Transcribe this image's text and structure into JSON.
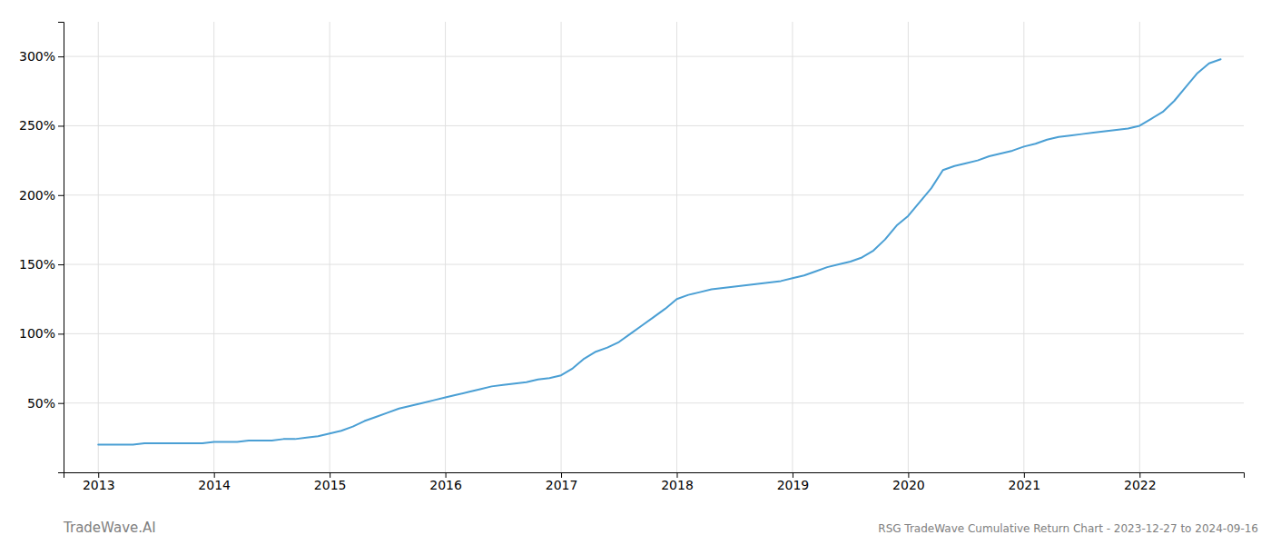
{
  "chart_data": {
    "type": "line",
    "title": "RSG TradeWave Cumulative Return Chart - 2023-12-27 to 2024-09-16",
    "annotations": [
      "TradeWave.AI"
    ],
    "x": [
      2013.0,
      2013.1,
      2013.2,
      2013.3,
      2013.4,
      2013.5,
      2013.6,
      2013.7,
      2013.8,
      2013.9,
      2014.0,
      2014.1,
      2014.2,
      2014.3,
      2014.4,
      2014.5,
      2014.6,
      2014.7,
      2014.8,
      2014.9,
      2015.0,
      2015.1,
      2015.2,
      2015.3,
      2015.4,
      2015.5,
      2015.6,
      2015.7,
      2015.8,
      2015.9,
      2016.0,
      2016.1,
      2016.2,
      2016.3,
      2016.4,
      2016.5,
      2016.6,
      2016.7,
      2016.8,
      2016.9,
      2017.0,
      2017.1,
      2017.2,
      2017.3,
      2017.4,
      2017.5,
      2017.6,
      2017.7,
      2017.8,
      2017.9,
      2018.0,
      2018.1,
      2018.2,
      2018.3,
      2018.4,
      2018.5,
      2018.6,
      2018.7,
      2018.8,
      2018.9,
      2019.0,
      2019.1,
      2019.2,
      2019.3,
      2019.4,
      2019.5,
      2019.6,
      2019.7,
      2019.8,
      2019.9,
      2020.0,
      2020.1,
      2020.2,
      2020.3,
      2020.4,
      2020.5,
      2020.6,
      2020.7,
      2020.8,
      2020.9,
      2021.0,
      2021.1,
      2021.2,
      2021.3,
      2021.4,
      2021.5,
      2021.6,
      2021.7,
      2021.8,
      2021.9,
      2022.0,
      2022.1,
      2022.2,
      2022.3,
      2022.4,
      2022.5,
      2022.6,
      2022.7
    ],
    "values": [
      20,
      20,
      20,
      20,
      21,
      21,
      21,
      21,
      21,
      21,
      22,
      22,
      22,
      23,
      23,
      23,
      24,
      24,
      25,
      26,
      28,
      30,
      33,
      37,
      40,
      43,
      46,
      48,
      50,
      52,
      54,
      56,
      58,
      60,
      62,
      63,
      64,
      65,
      67,
      68,
      70,
      75,
      82,
      87,
      90,
      94,
      100,
      106,
      112,
      118,
      125,
      128,
      130,
      132,
      133,
      134,
      135,
      136,
      137,
      138,
      140,
      142,
      145,
      148,
      150,
      152,
      155,
      160,
      168,
      178,
      185,
      195,
      205,
      218,
      221,
      223,
      225,
      228,
      230,
      232,
      235,
      237,
      240,
      242,
      243,
      244,
      245,
      246,
      247,
      248,
      250,
      255,
      260,
      268,
      278,
      288,
      295,
      298
    ],
    "color": "#4a9fd4",
    "xlim": [
      2012.7,
      2022.9
    ],
    "xticks": [
      2013,
      2014,
      2015,
      2016,
      2017,
      2018,
      2019,
      2020,
      2021,
      2022
    ],
    "ylim": [
      0,
      325
    ],
    "yticks": [
      {
        "value": 50,
        "label": "50%"
      },
      {
        "value": 100,
        "label": "100%"
      },
      {
        "value": 150,
        "label": "150%"
      },
      {
        "value": 200,
        "label": "200%"
      },
      {
        "value": 250,
        "label": "250%"
      },
      {
        "value": 300,
        "label": "300%"
      }
    ],
    "grid": true
  }
}
